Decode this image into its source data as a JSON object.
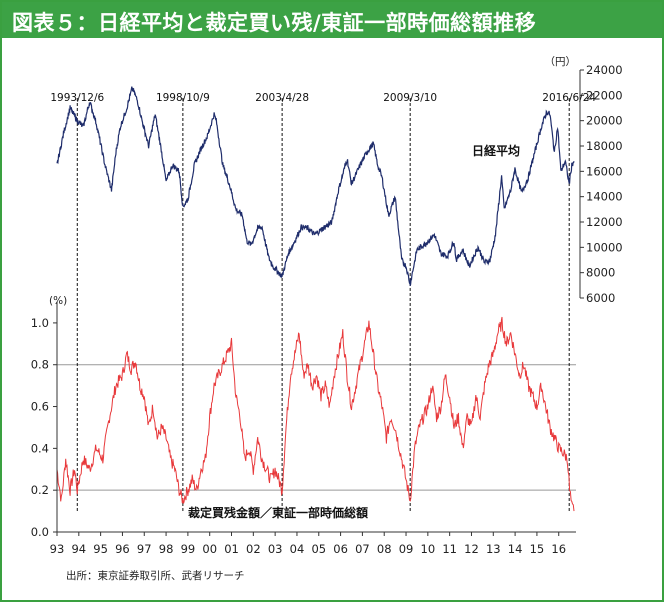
{
  "title": "図表５：日経平均と裁定買い残/東証一部時価総額推移",
  "source": "出所：東京証券取引所、武者リサーチ",
  "colors": {
    "header": "#3ca245",
    "nikkei": "#1f2d6b",
    "ratio": "#e8393b",
    "axis": "#333333",
    "ref": "#999999"
  },
  "chart_data": {
    "type": "line",
    "x_tick_labels": [
      "93",
      "94",
      "95",
      "96",
      "97",
      "98",
      "99",
      "00",
      "01",
      "02",
      "03",
      "04",
      "05",
      "06",
      "07",
      "08",
      "09",
      "10",
      "11",
      "12",
      "13",
      "14",
      "15",
      "16"
    ],
    "x_range": [
      1993.0,
      2016.7
    ],
    "event_markers": [
      {
        "label": "1993/12/6",
        "x": 1993.93
      },
      {
        "label": "1998/10/9",
        "x": 1998.77
      },
      {
        "label": "2003/4/28",
        "x": 2003.32
      },
      {
        "label": "2009/3/10",
        "x": 2009.19
      },
      {
        "label": "2016/6/24",
        "x": 2016.48
      }
    ],
    "series": [
      {
        "name": "日経平均",
        "unit": "（円）",
        "axis": "right",
        "ylim": [
          6000,
          24000
        ],
        "ticks": [
          "6000",
          "8000",
          "10000",
          "12000",
          "14000",
          "16000",
          "18000",
          "20000",
          "22000",
          "24000"
        ],
        "points": [
          [
            1993.0,
            16500
          ],
          [
            1993.3,
            19000
          ],
          [
            1993.6,
            21000
          ],
          [
            1993.93,
            20000
          ],
          [
            1994.2,
            19500
          ],
          [
            1994.5,
            21500
          ],
          [
            1994.8,
            19800
          ],
          [
            1995.2,
            16500
          ],
          [
            1995.5,
            14500
          ],
          [
            1995.7,
            17500
          ],
          [
            1995.9,
            19500
          ],
          [
            1996.2,
            21000
          ],
          [
            1996.45,
            22600
          ],
          [
            1996.7,
            21500
          ],
          [
            1996.9,
            20000
          ],
          [
            1997.2,
            18000
          ],
          [
            1997.5,
            20500
          ],
          [
            1997.8,
            17500
          ],
          [
            1998.0,
            15200
          ],
          [
            1998.3,
            16500
          ],
          [
            1998.6,
            16000
          ],
          [
            1998.77,
            13200
          ],
          [
            1999.0,
            13800
          ],
          [
            1999.3,
            16500
          ],
          [
            1999.6,
            17800
          ],
          [
            1999.9,
            18800
          ],
          [
            2000.2,
            20500
          ],
          [
            2000.3,
            20000
          ],
          [
            2000.6,
            16500
          ],
          [
            2000.9,
            15000
          ],
          [
            2001.2,
            13000
          ],
          [
            2001.5,
            12500
          ],
          [
            2001.7,
            10500
          ],
          [
            2001.9,
            10200
          ],
          [
            2002.2,
            11500
          ],
          [
            2002.4,
            11600
          ],
          [
            2002.7,
            9200
          ],
          [
            2002.9,
            8500
          ],
          [
            2003.32,
            7700
          ],
          [
            2003.6,
            9500
          ],
          [
            2003.9,
            10500
          ],
          [
            2004.2,
            11600
          ],
          [
            2004.5,
            11500
          ],
          [
            2004.8,
            11000
          ],
          [
            2005.2,
            11500
          ],
          [
            2005.6,
            12000
          ],
          [
            2005.9,
            14500
          ],
          [
            2006.3,
            17000
          ],
          [
            2006.5,
            15000
          ],
          [
            2006.9,
            16500
          ],
          [
            2007.2,
            17500
          ],
          [
            2007.5,
            18200
          ],
          [
            2007.7,
            16500
          ],
          [
            2007.9,
            15500
          ],
          [
            2008.2,
            12500
          ],
          [
            2008.5,
            14000
          ],
          [
            2008.8,
            9000
          ],
          [
            2009.0,
            8500
          ],
          [
            2009.19,
            7100
          ],
          [
            2009.5,
            9800
          ],
          [
            2009.9,
            10300
          ],
          [
            2010.3,
            11000
          ],
          [
            2010.6,
            9500
          ],
          [
            2010.9,
            9300
          ],
          [
            2011.2,
            10500
          ],
          [
            2011.3,
            9000
          ],
          [
            2011.6,
            9800
          ],
          [
            2011.9,
            8500
          ],
          [
            2012.3,
            10000
          ],
          [
            2012.6,
            8800
          ],
          [
            2012.85,
            9000
          ],
          [
            2013.1,
            11000
          ],
          [
            2013.38,
            15600
          ],
          [
            2013.5,
            13000
          ],
          [
            2013.8,
            14500
          ],
          [
            2013.99,
            16200
          ],
          [
            2014.3,
            14300
          ],
          [
            2014.6,
            15500
          ],
          [
            2014.9,
            17500
          ],
          [
            2015.2,
            19500
          ],
          [
            2015.45,
            20700
          ],
          [
            2015.6,
            20500
          ],
          [
            2015.8,
            17500
          ],
          [
            2015.95,
            19500
          ],
          [
            2016.1,
            16000
          ],
          [
            2016.3,
            16800
          ],
          [
            2016.48,
            15000
          ],
          [
            2016.6,
            16500
          ],
          [
            2016.7,
            16800
          ]
        ]
      },
      {
        "name": "裁定買残金額／東証一部時価総額",
        "unit": "(%)",
        "axis": "left",
        "ylim": [
          0.0,
          1.1
        ],
        "ticks": [
          "0.0",
          "0.2",
          "0.4",
          "0.6",
          "0.8",
          "1.0"
        ],
        "reference_lines": [
          0.2,
          0.8
        ],
        "points": [
          [
            1993.0,
            0.3
          ],
          [
            1993.2,
            0.15
          ],
          [
            1993.4,
            0.35
          ],
          [
            1993.6,
            0.2
          ],
          [
            1993.8,
            0.3
          ],
          [
            1993.93,
            0.2
          ],
          [
            1994.2,
            0.35
          ],
          [
            1994.5,
            0.3
          ],
          [
            1994.8,
            0.4
          ],
          [
            1995.1,
            0.35
          ],
          [
            1995.4,
            0.55
          ],
          [
            1995.7,
            0.7
          ],
          [
            1996.0,
            0.75
          ],
          [
            1996.2,
            0.85
          ],
          [
            1996.4,
            0.78
          ],
          [
            1996.6,
            0.82
          ],
          [
            1996.8,
            0.7
          ],
          [
            1997.0,
            0.65
          ],
          [
            1997.2,
            0.5
          ],
          [
            1997.4,
            0.6
          ],
          [
            1997.6,
            0.45
          ],
          [
            1997.8,
            0.5
          ],
          [
            1998.0,
            0.45
          ],
          [
            1998.2,
            0.35
          ],
          [
            1998.4,
            0.3
          ],
          [
            1998.6,
            0.2
          ],
          [
            1998.77,
            0.15
          ],
          [
            1999.0,
            0.2
          ],
          [
            1999.2,
            0.25
          ],
          [
            1999.4,
            0.2
          ],
          [
            1999.6,
            0.3
          ],
          [
            1999.8,
            0.35
          ],
          [
            2000.0,
            0.55
          ],
          [
            2000.2,
            0.7
          ],
          [
            2000.4,
            0.75
          ],
          [
            2000.6,
            0.8
          ],
          [
            2000.8,
            0.85
          ],
          [
            2001.0,
            0.9
          ],
          [
            2001.2,
            0.65
          ],
          [
            2001.4,
            0.55
          ],
          [
            2001.6,
            0.35
          ],
          [
            2001.8,
            0.4
          ],
          [
            2002.0,
            0.3
          ],
          [
            2002.2,
            0.45
          ],
          [
            2002.4,
            0.35
          ],
          [
            2002.6,
            0.3
          ],
          [
            2002.8,
            0.25
          ],
          [
            2003.0,
            0.3
          ],
          [
            2003.32,
            0.2
          ],
          [
            2003.5,
            0.5
          ],
          [
            2003.7,
            0.75
          ],
          [
            2003.9,
            0.85
          ],
          [
            2004.1,
            0.95
          ],
          [
            2004.3,
            0.75
          ],
          [
            2004.5,
            0.8
          ],
          [
            2004.7,
            0.7
          ],
          [
            2004.9,
            0.75
          ],
          [
            2005.1,
            0.65
          ],
          [
            2005.3,
            0.7
          ],
          [
            2005.5,
            0.6
          ],
          [
            2005.7,
            0.75
          ],
          [
            2005.9,
            0.85
          ],
          [
            2006.1,
            0.95
          ],
          [
            2006.3,
            0.75
          ],
          [
            2006.5,
            0.6
          ],
          [
            2006.7,
            0.7
          ],
          [
            2006.9,
            0.8
          ],
          [
            2007.1,
            0.9
          ],
          [
            2007.3,
            1.0
          ],
          [
            2007.5,
            0.85
          ],
          [
            2007.7,
            0.7
          ],
          [
            2007.9,
            0.6
          ],
          [
            2008.1,
            0.45
          ],
          [
            2008.3,
            0.55
          ],
          [
            2008.5,
            0.5
          ],
          [
            2008.7,
            0.4
          ],
          [
            2008.9,
            0.3
          ],
          [
            2009.0,
            0.25
          ],
          [
            2009.19,
            0.15
          ],
          [
            2009.4,
            0.4
          ],
          [
            2009.6,
            0.5
          ],
          [
            2009.8,
            0.55
          ],
          [
            2010.0,
            0.6
          ],
          [
            2010.2,
            0.7
          ],
          [
            2010.4,
            0.55
          ],
          [
            2010.6,
            0.6
          ],
          [
            2010.8,
            0.75
          ],
          [
            2011.0,
            0.65
          ],
          [
            2011.2,
            0.5
          ],
          [
            2011.4,
            0.55
          ],
          [
            2011.6,
            0.4
          ],
          [
            2011.8,
            0.55
          ],
          [
            2012.0,
            0.5
          ],
          [
            2012.2,
            0.65
          ],
          [
            2012.4,
            0.55
          ],
          [
            2012.6,
            0.7
          ],
          [
            2012.8,
            0.8
          ],
          [
            2013.0,
            0.85
          ],
          [
            2013.2,
            0.95
          ],
          [
            2013.4,
            1.0
          ],
          [
            2013.6,
            0.9
          ],
          [
            2013.8,
            0.95
          ],
          [
            2014.0,
            0.85
          ],
          [
            2014.2,
            0.75
          ],
          [
            2014.4,
            0.8
          ],
          [
            2014.6,
            0.7
          ],
          [
            2014.8,
            0.65
          ],
          [
            2015.0,
            0.6
          ],
          [
            2015.2,
            0.7
          ],
          [
            2015.4,
            0.6
          ],
          [
            2015.6,
            0.5
          ],
          [
            2015.8,
            0.45
          ],
          [
            2016.0,
            0.4
          ],
          [
            2016.2,
            0.38
          ],
          [
            2016.4,
            0.35
          ],
          [
            2016.5,
            0.2
          ],
          [
            2016.6,
            0.12
          ],
          [
            2016.7,
            0.1
          ]
        ]
      }
    ]
  }
}
